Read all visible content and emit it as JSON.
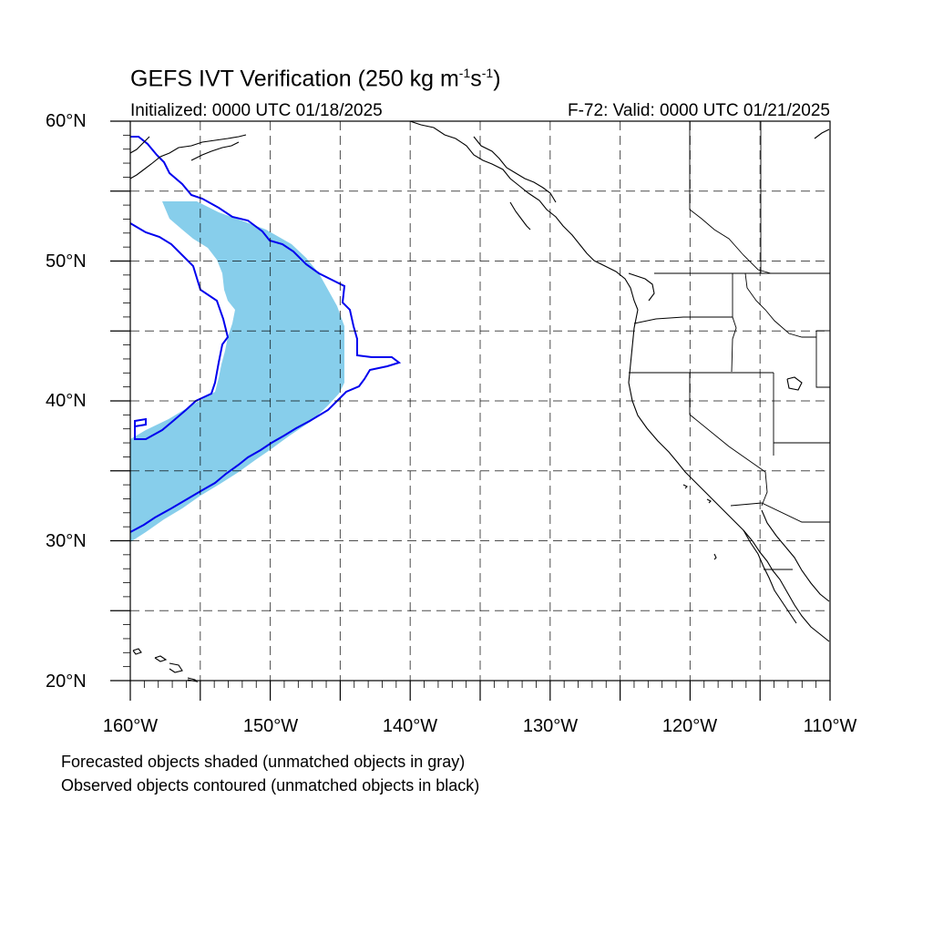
{
  "title": {
    "prefix": "GEFS IVT Verification (250 kg m",
    "sup1": "-1",
    "mid": "s",
    "sup2": "-1",
    "suffix": ")"
  },
  "initialized": "Initialized: 0000 UTC 01/18/2025",
  "valid": "F-72: Valid: 0000 UTC 01/21/2025",
  "lat_labels": [
    "60°N",
    "50°N",
    "40°N",
    "30°N",
    "20°N"
  ],
  "lon_labels": [
    "160°W",
    "150°W",
    "140°W",
    "130°W",
    "120°W",
    "110°W"
  ],
  "notes": [
    "Forecasted objects shaded (unmatched objects in gray)",
    "Observed objects contoured (unmatched objects in black)"
  ],
  "map": {
    "lon_range": [
      -160,
      -110
    ],
    "lat_range": [
      20,
      60
    ],
    "forecast_fill_color": "#87ceeb",
    "observed_contour_color": "#0000ee",
    "coastline_color": "#000000"
  }
}
